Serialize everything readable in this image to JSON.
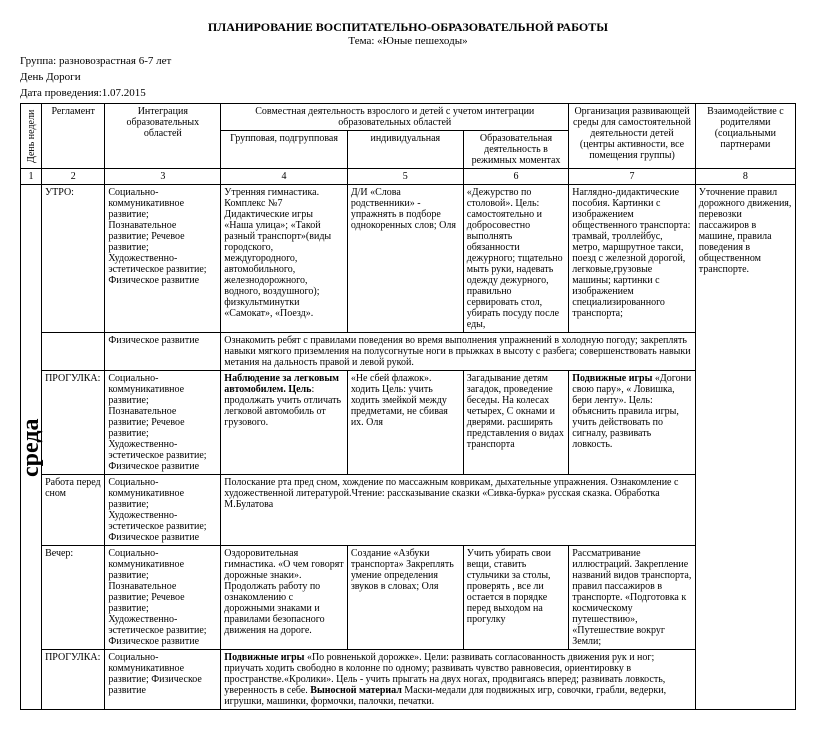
{
  "header": {
    "title": "ПЛАНИРОВАНИЕ ВОСПИТАТЕЛЬНО-ОБРАЗОВАТЕЛЬНОЙ РАБОТЫ",
    "theme_label": "Тема: «Юные пешеходы»",
    "group": "Группа: разновозрастная 6-7 лет",
    "day": "День Дороги",
    "date": "Дата проведения:1.07.2015"
  },
  "table": {
    "head": {
      "day_of_week": "День недели",
      "reglament": "Регламент",
      "integration": "Интеграция образовательных областей",
      "joint": "Совместная деятельность взрослого и детей с учетом интеграции образовательных областей",
      "group": "Групповая, подгрупповая",
      "individual": "индивидуальная",
      "regime": "Образовательная деятельность в режимных моментах",
      "env": "Организация развивающей среды для самостоятельной деятельности детей (центры активности, все помещения группы)",
      "parents": "Взаимодействие с родителями (социальными партнерами",
      "nums": [
        "1",
        "2",
        "3",
        "4",
        "5",
        "6",
        "7",
        "8"
      ]
    },
    "dayname": "среда",
    "rows": [
      {
        "reg": "УТРО:",
        "int": "Социально-коммуникативное развитие; Познавательное развитие; Речевое развитие; Художественно-эстетическое развитие; Физическое развитие",
        "c4": "Утренняя гимнастика. Комплекс №7\nДидактические игры «Наша улица»; «Такой разный транспорт»(виды городского, междугородного, автомобильного, железнодорожного, водного, воздушного); физкультминутки «Самокат», «Поезд».",
        "c5": "Д/И «Слова родственники» - упражнять в подборе однокоренных слов; Оля",
        "c6": "«Дежурство по столовой».\nЦель: самостоятельно и добросовестно выполнять обязанности дежурного; тщательно мыть руки, надевать одежду дежурного, правильно сервировать стол, убирать посуду после еды,",
        "c7": "Наглядно-дидактические пособия. Картинки с изображением общественного транспорта: трамвай, троллейбус, метро, маршрутное такси, поезд с железной дорогой, легковые,грузовые машины; картинки с изображением специализированного транспорта;",
        "c8": "Уточнение правил дорожного движения, перевозки пассажиров в машине, правила поведения в общественном транспорте."
      },
      {
        "int": "Физическое развитие",
        "merged": "Ознакомить ребят с правилами поведения во время выполнения упражнений в холодную погоду; закреплять навыки мягкого приземления на полусогнутые ноги в прыжках в высоту с разбега; совершенствовать навыки метания на дальность правой и левой рукой."
      },
      {
        "reg": "ПРОГУЛКА:",
        "int": "Социально-коммуникативное развитие; Познавательное развитие; Речевое развитие; Художественно-эстетическое развитие; Физическое развитие",
        "c4": "Наблюдение за легковым автомобилем. Цель: продолжать учить отличать легковой автомобиль от грузового.",
        "c4_bold": "Наблюдение за легковым автомобилем. Цель",
        "c5": "«Не сбей флажок». ходить Цель: учить ходить змейкой между предметами, не сбивая их.\nОля",
        "c6": "Загадывание детям загадок, проведение беседы.\nНа колесах четырех,\nС окнами и дверями.\nрасширять представления о видах транспорта",
        "c7_b": "Подвижные игры",
        "c7": " «Догони свою пару», « Ловишка, бери ленту». Цель: объяснить правила игры, учить действовать по сигналу, развивать ловкость."
      },
      {
        "reg": "Работа перед сном",
        "int": "Социально-коммуникативное развитие; Художественно-эстетическое развитие; Физическое развитие",
        "merged": "Полоскание рта пред сном, хождение по массажным коврикам, дыхательные упражнения. Ознакомление с художественной литературой.Чтение: рассказывание сказки «Сивка-бурка» русская сказка. Обработка М.Булатова"
      },
      {
        "reg": "Вечер:",
        "int": "Социально-коммуникативное развитие; Познавательное развитие; Речевое развитие; Художественно-эстетическое развитие; Физическое развитие",
        "c4": "Оздоровительная гимнастика. «О чем говорят дорожные знаки». Продолжать работу по ознакомлению с дорожными знаками и правилами безопасного движения на дороге.",
        "c5": "Создание «Азбуки транспорта» Закреплять умение определения звуков в словах;\nОля",
        "c6": "Учить убирать свои вещи, ставить стульчики за столы, проверять , все ли остается в порядке перед выходом на прогулку",
        "c7": "Рассматривание иллюстраций. Закрепление названий видов транспорта, правил пассажиров в транспорте. «Подготовка к космическому путешествию», «Путешествие вокруг Земли;"
      },
      {
        "reg": "ПРОГУЛКА:",
        "int": "Социально-коммуникативное развитие; Физическое развитие",
        "merged_b": "Подвижные игры",
        "merged1": " «По ровненькой дорожке». Цели: развивать согласованность движения рук и ног; приучать ходить свободно в колонне по одному; развивать чувство равновесия, ориентировку в пространстве.«Кролики». Цель - учить прыгать на двух ногах, продвигаясь вперед; развивать ловкость, уверенность в себе. ",
        "merged_b2": "Выносной материал",
        "merged2": " Маски-медали для подвижных игр, совочки, грабли, ведерки, игрушки, машинки, формочки, палочки, печатки."
      }
    ]
  }
}
